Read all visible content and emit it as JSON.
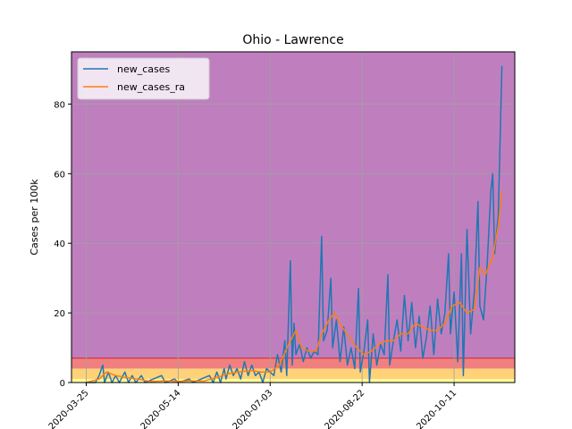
{
  "chart_data": {
    "type": "line",
    "title": "Ohio - Lawrence",
    "xlabel": "",
    "ylabel": "Cases per 100k",
    "x_range": [
      "2020-03-17",
      "2020-11-13"
    ],
    "ylim": [
      0,
      95
    ],
    "yticks": [
      0,
      20,
      40,
      60,
      80
    ],
    "xticks": [
      "2020-03-25",
      "2020-05-14",
      "2020-07-03",
      "2020-08-22",
      "2020-10-11"
    ],
    "grid": true,
    "legend": "top-left",
    "risk_bands": [
      {
        "from": 0,
        "to": 1,
        "color": "#ffff99"
      },
      {
        "from": 1,
        "to": 4,
        "color": "#ffd27a"
      },
      {
        "from": 4,
        "to": 7,
        "color": "#f08080"
      },
      {
        "from": 7,
        "to": 95,
        "color": "#bf7fbf"
      }
    ],
    "series": [
      {
        "name": "new_cases",
        "color": "#1f77b4",
        "points": [
          [
            "2020-03-25",
            0
          ],
          [
            "2020-03-30",
            0
          ],
          [
            "2020-04-01",
            2
          ],
          [
            "2020-04-03",
            5
          ],
          [
            "2020-04-04",
            0
          ],
          [
            "2020-04-06",
            3
          ],
          [
            "2020-04-08",
            0
          ],
          [
            "2020-04-10",
            2
          ],
          [
            "2020-04-12",
            0
          ],
          [
            "2020-04-15",
            3
          ],
          [
            "2020-04-17",
            0
          ],
          [
            "2020-04-19",
            2
          ],
          [
            "2020-04-21",
            0
          ],
          [
            "2020-04-24",
            2
          ],
          [
            "2020-04-26",
            0
          ],
          [
            "2020-05-05",
            2
          ],
          [
            "2020-05-07",
            0
          ],
          [
            "2020-05-12",
            1
          ],
          [
            "2020-05-14",
            0
          ],
          [
            "2020-05-20",
            1
          ],
          [
            "2020-05-22",
            0
          ],
          [
            "2020-05-31",
            2
          ],
          [
            "2020-06-02",
            0
          ],
          [
            "2020-06-04",
            3
          ],
          [
            "2020-06-06",
            0
          ],
          [
            "2020-06-08",
            4
          ],
          [
            "2020-06-09",
            1
          ],
          [
            "2020-06-11",
            5
          ],
          [
            "2020-06-13",
            2
          ],
          [
            "2020-06-15",
            4
          ],
          [
            "2020-06-17",
            1
          ],
          [
            "2020-06-19",
            6
          ],
          [
            "2020-06-21",
            2
          ],
          [
            "2020-06-23",
            5
          ],
          [
            "2020-06-25",
            2
          ],
          [
            "2020-06-27",
            3
          ],
          [
            "2020-06-29",
            0
          ],
          [
            "2020-07-01",
            4
          ],
          [
            "2020-07-03",
            3
          ],
          [
            "2020-07-05",
            2
          ],
          [
            "2020-07-07",
            8
          ],
          [
            "2020-07-09",
            3
          ],
          [
            "2020-07-11",
            12
          ],
          [
            "2020-07-12",
            2
          ],
          [
            "2020-07-14",
            35
          ],
          [
            "2020-07-15",
            5
          ],
          [
            "2020-07-16",
            17
          ],
          [
            "2020-07-17",
            8
          ],
          [
            "2020-07-19",
            11
          ],
          [
            "2020-07-21",
            6
          ],
          [
            "2020-07-23",
            10
          ],
          [
            "2020-07-25",
            7
          ],
          [
            "2020-07-27",
            9
          ],
          [
            "2020-07-29",
            8
          ],
          [
            "2020-07-31",
            42
          ],
          [
            "2020-08-01",
            12
          ],
          [
            "2020-08-03",
            15
          ],
          [
            "2020-08-05",
            30
          ],
          [
            "2020-08-06",
            10
          ],
          [
            "2020-08-08",
            18
          ],
          [
            "2020-08-10",
            6
          ],
          [
            "2020-08-12",
            16
          ],
          [
            "2020-08-14",
            5
          ],
          [
            "2020-08-16",
            10
          ],
          [
            "2020-08-18",
            4
          ],
          [
            "2020-08-20",
            27
          ],
          [
            "2020-08-21",
            3
          ],
          [
            "2020-08-23",
            9
          ],
          [
            "2020-08-25",
            18
          ],
          [
            "2020-08-26",
            0
          ],
          [
            "2020-08-28",
            14
          ],
          [
            "2020-08-30",
            5
          ],
          [
            "2020-09-01",
            11
          ],
          [
            "2020-09-03",
            8
          ],
          [
            "2020-09-05",
            31
          ],
          [
            "2020-09-06",
            5
          ],
          [
            "2020-09-08",
            12
          ],
          [
            "2020-09-10",
            18
          ],
          [
            "2020-09-12",
            9
          ],
          [
            "2020-09-14",
            25
          ],
          [
            "2020-09-16",
            12
          ],
          [
            "2020-09-18",
            23
          ],
          [
            "2020-09-20",
            10
          ],
          [
            "2020-09-22",
            19
          ],
          [
            "2020-09-24",
            7
          ],
          [
            "2020-09-26",
            13
          ],
          [
            "2020-09-28",
            22
          ],
          [
            "2020-09-30",
            8
          ],
          [
            "2020-10-02",
            24
          ],
          [
            "2020-10-04",
            14
          ],
          [
            "2020-10-06",
            20
          ],
          [
            "2020-10-08",
            37
          ],
          [
            "2020-10-09",
            14
          ],
          [
            "2020-10-11",
            26
          ],
          [
            "2020-10-13",
            6
          ],
          [
            "2020-10-15",
            37
          ],
          [
            "2020-10-16",
            2
          ],
          [
            "2020-10-18",
            44
          ],
          [
            "2020-10-20",
            14
          ],
          [
            "2020-10-22",
            26
          ],
          [
            "2020-10-24",
            52
          ],
          [
            "2020-10-25",
            22
          ],
          [
            "2020-10-27",
            18
          ],
          [
            "2020-10-29",
            34
          ],
          [
            "2020-10-31",
            55
          ],
          [
            "2020-11-01",
            60
          ],
          [
            "2020-11-02",
            37
          ],
          [
            "2020-11-04",
            48
          ],
          [
            "2020-11-06",
            91
          ]
        ]
      },
      {
        "name": "new_cases_ra",
        "color": "#ff7f0e",
        "points": [
          [
            "2020-03-25",
            0
          ],
          [
            "2020-04-01",
            1
          ],
          [
            "2020-04-05",
            3
          ],
          [
            "2020-04-10",
            2
          ],
          [
            "2020-04-15",
            1.5
          ],
          [
            "2020-04-22",
            1
          ],
          [
            "2020-04-29",
            0.3
          ],
          [
            "2020-05-07",
            0.5
          ],
          [
            "2020-05-14",
            0.3
          ],
          [
            "2020-05-21",
            0.5
          ],
          [
            "2020-05-28",
            0.4
          ],
          [
            "2020-06-04",
            1.5
          ],
          [
            "2020-06-10",
            2.5
          ],
          [
            "2020-06-16",
            3
          ],
          [
            "2020-06-22",
            3.5
          ],
          [
            "2020-06-28",
            3
          ],
          [
            "2020-07-03",
            3
          ],
          [
            "2020-07-08",
            5
          ],
          [
            "2020-07-13",
            11
          ],
          [
            "2020-07-17",
            15
          ],
          [
            "2020-07-20",
            10
          ],
          [
            "2020-07-24",
            9
          ],
          [
            "2020-07-28",
            9
          ],
          [
            "2020-07-31",
            14
          ],
          [
            "2020-08-04",
            18
          ],
          [
            "2020-08-07",
            20
          ],
          [
            "2020-08-11",
            16
          ],
          [
            "2020-08-15",
            13
          ],
          [
            "2020-08-19",
            10
          ],
          [
            "2020-08-23",
            8
          ],
          [
            "2020-08-27",
            9
          ],
          [
            "2020-08-31",
            11
          ],
          [
            "2020-09-04",
            12
          ],
          [
            "2020-09-08",
            12
          ],
          [
            "2020-09-12",
            14
          ],
          [
            "2020-09-16",
            14
          ],
          [
            "2020-09-20",
            17
          ],
          [
            "2020-09-24",
            16
          ],
          [
            "2020-09-28",
            15
          ],
          [
            "2020-10-02",
            15
          ],
          [
            "2020-10-06",
            17
          ],
          [
            "2020-10-10",
            22
          ],
          [
            "2020-10-14",
            23
          ],
          [
            "2020-10-18",
            20
          ],
          [
            "2020-10-22",
            21
          ],
          [
            "2020-10-25",
            33
          ],
          [
            "2020-10-28",
            31
          ],
          [
            "2020-11-01",
            36
          ],
          [
            "2020-11-04",
            45
          ],
          [
            "2020-11-06",
            55
          ]
        ]
      }
    ]
  }
}
